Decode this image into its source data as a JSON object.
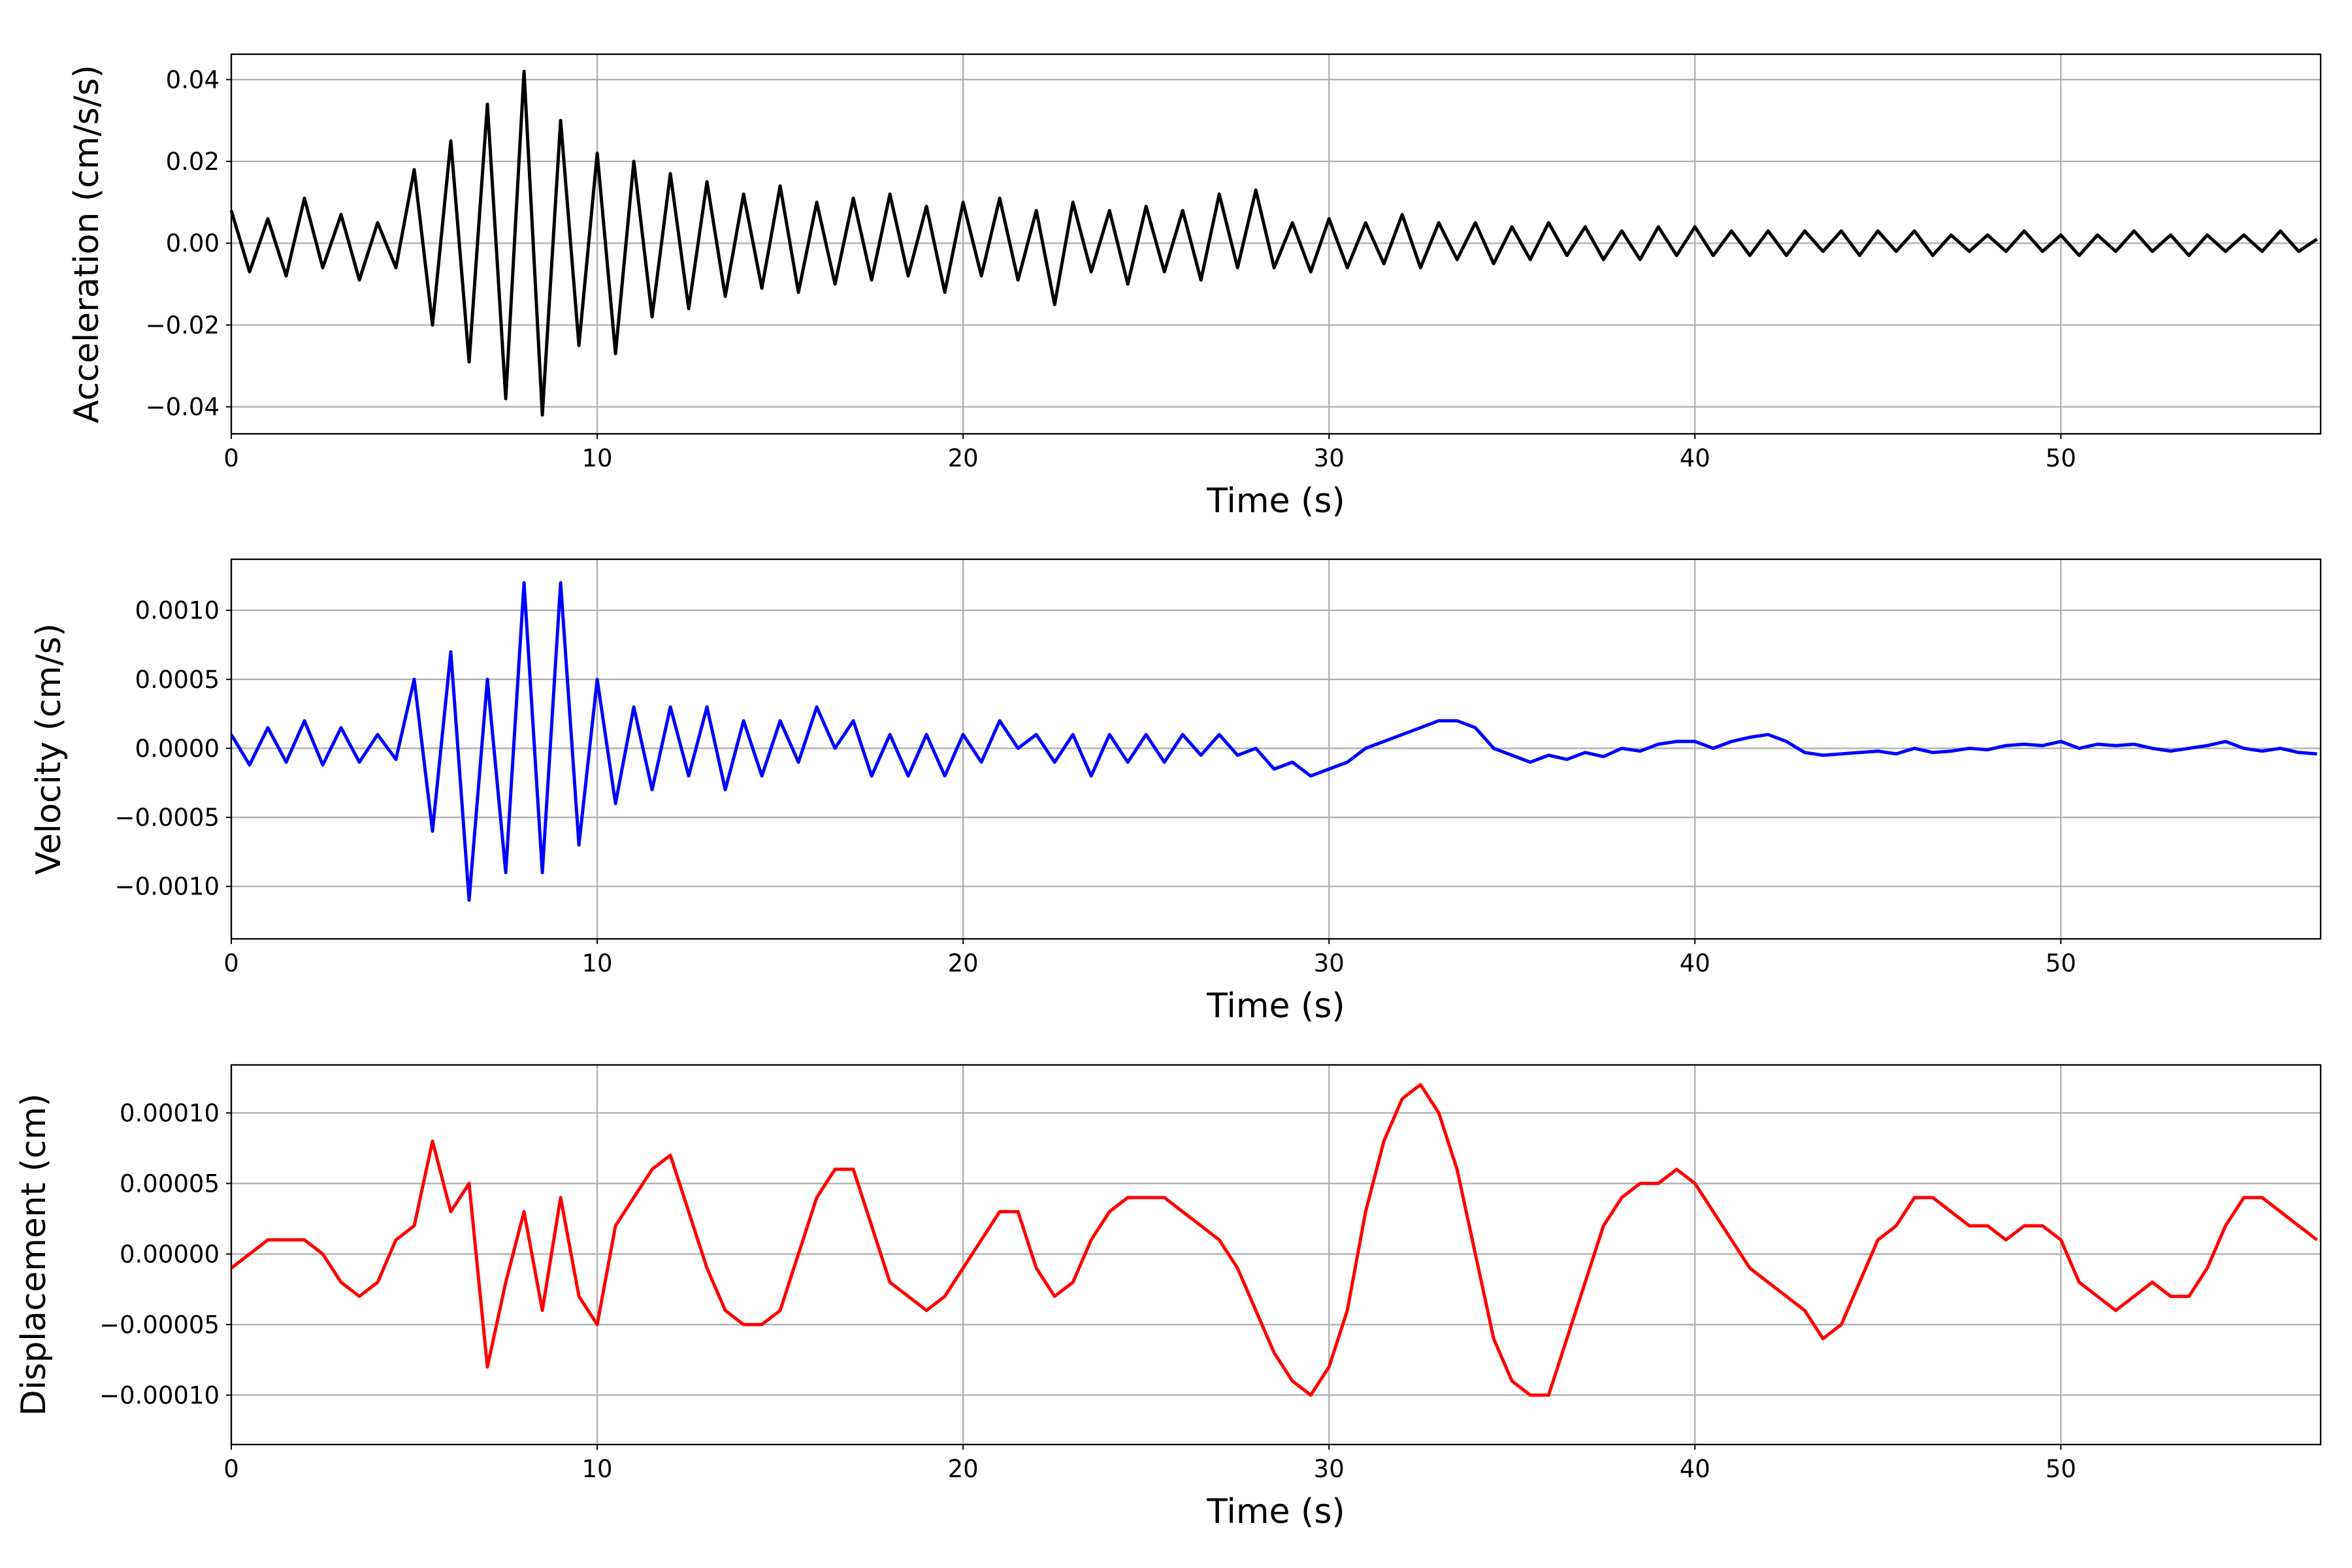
{
  "chart_data": [
    {
      "type": "line",
      "xlabel": "Time (s)",
      "ylabel": "Acceleration (cm/s/s)",
      "color": "#000000",
      "grid": true,
      "xlim": [
        0,
        57.1
      ],
      "xticks": [
        0,
        10,
        20,
        30,
        40,
        50
      ],
      "ylim": [
        -0.0466,
        0.0462
      ],
      "yticks": [
        {
          "value": -0.04,
          "label": "−0.04"
        },
        {
          "value": -0.02,
          "label": "−0.02"
        },
        {
          "value": 0,
          "label": "0.00"
        },
        0.02,
        0.04
      ],
      "x": [
        0,
        0.5,
        1,
        1.5,
        2,
        2.5,
        3,
        3.5,
        4,
        4.5,
        5,
        5.5,
        6,
        6.5,
        7,
        7.5,
        8,
        8.5,
        9,
        9.5,
        10,
        10.5,
        11,
        11.5,
        12,
        12.5,
        13,
        13.5,
        14,
        14.5,
        15,
        15.5,
        16,
        16.5,
        17,
        17.5,
        18,
        18.5,
        19,
        19.5,
        20,
        20.5,
        21,
        21.5,
        22,
        22.5,
        23,
        23.5,
        24,
        24.5,
        25,
        25.5,
        26,
        26.5,
        27,
        27.5,
        28,
        28.5,
        29,
        29.5,
        30,
        30.5,
        31,
        31.5,
        32,
        32.5,
        33,
        33.5,
        34,
        34.5,
        35,
        35.5,
        36,
        36.5,
        37,
        37.5,
        38,
        38.5,
        39,
        39.5,
        40,
        40.5,
        41,
        41.5,
        42,
        42.5,
        43,
        43.5,
        44,
        44.5,
        45,
        45.5,
        46,
        46.5,
        47,
        47.5,
        48,
        48.5,
        49,
        49.5,
        50,
        50.5,
        51,
        51.5,
        52,
        52.5,
        53,
        53.5,
        54,
        54.5,
        55,
        55.5,
        56,
        56.5,
        57
      ],
      "values": [
        0.008,
        -0.007,
        0.006,
        -0.008,
        0.011,
        -0.006,
        0.007,
        -0.009,
        0.005,
        -0.006,
        0.018,
        -0.02,
        0.025,
        -0.029,
        0.034,
        -0.038,
        0.042,
        -0.042,
        0.03,
        -0.025,
        0.022,
        -0.027,
        0.02,
        -0.018,
        0.017,
        -0.016,
        0.015,
        -0.013,
        0.012,
        -0.011,
        0.014,
        -0.012,
        0.01,
        -0.01,
        0.011,
        -0.009,
        0.012,
        -0.008,
        0.009,
        -0.012,
        0.01,
        -0.008,
        0.011,
        -0.009,
        0.008,
        -0.015,
        0.01,
        -0.007,
        0.008,
        -0.01,
        0.009,
        -0.007,
        0.008,
        -0.009,
        0.012,
        -0.006,
        0.013,
        -0.006,
        0.005,
        -0.007,
        0.006,
        -0.006,
        0.005,
        -0.005,
        0.007,
        -0.006,
        0.005,
        -0.004,
        0.005,
        -0.005,
        0.004,
        -0.004,
        0.005,
        -0.003,
        0.004,
        -0.004,
        0.003,
        -0.004,
        0.004,
        -0.003,
        0.004,
        -0.003,
        0.003,
        -0.003,
        0.003,
        -0.003,
        0.003,
        -0.002,
        0.003,
        -0.003,
        0.003,
        -0.002,
        0.003,
        -0.003,
        0.002,
        -0.002,
        0.002,
        -0.002,
        0.003,
        -0.002,
        0.002,
        -0.003,
        0.002,
        -0.002,
        0.003,
        -0.002,
        0.002,
        -0.003,
        0.002,
        -0.002,
        0.002,
        -0.002,
        0.003,
        -0.002,
        0.001
      ]
    },
    {
      "type": "line",
      "xlabel": "Time (s)",
      "ylabel": "Velocity (cm/s)",
      "color": "#0000ff",
      "grid": true,
      "xlim": [
        0,
        57.1
      ],
      "xticks": [
        0,
        10,
        20,
        30,
        40,
        50
      ],
      "ylim": [
        -0.00138,
        0.00137
      ],
      "yticks": [
        {
          "value": -0.001,
          "label": "−0.0010"
        },
        {
          "value": -0.0005,
          "label": "−0.0005"
        },
        {
          "value": 0,
          "label": "0.0000"
        },
        {
          "value": 0.0005,
          "label": "0.0005"
        },
        {
          "value": 0.001,
          "label": "0.0010"
        }
      ],
      "x": [
        0,
        0.5,
        1,
        1.5,
        2,
        2.5,
        3,
        3.5,
        4,
        4.5,
        5,
        5.5,
        6,
        6.5,
        7,
        7.5,
        8,
        8.5,
        9,
        9.5,
        10,
        10.5,
        11,
        11.5,
        12,
        12.5,
        13,
        13.5,
        14,
        14.5,
        15,
        15.5,
        16,
        16.5,
        17,
        17.5,
        18,
        18.5,
        19,
        19.5,
        20,
        20.5,
        21,
        21.5,
        22,
        22.5,
        23,
        23.5,
        24,
        24.5,
        25,
        25.5,
        26,
        26.5,
        27,
        27.5,
        28,
        28.5,
        29,
        29.5,
        30,
        30.5,
        31,
        31.5,
        32,
        32.5,
        33,
        33.5,
        34,
        34.5,
        35,
        35.5,
        36,
        36.5,
        37,
        37.5,
        38,
        38.5,
        39,
        39.5,
        40,
        40.5,
        41,
        41.5,
        42,
        42.5,
        43,
        43.5,
        44,
        44.5,
        45,
        45.5,
        46,
        46.5,
        47,
        47.5,
        48,
        48.5,
        49,
        49.5,
        50,
        50.5,
        51,
        51.5,
        52,
        52.5,
        53,
        53.5,
        54,
        54.5,
        55,
        55.5,
        56,
        56.5,
        57
      ],
      "values": [
        0.0001,
        -0.00012,
        0.00015,
        -0.0001,
        0.0002,
        -0.00012,
        0.00015,
        -0.0001,
        0.0001,
        -8e-05,
        0.0005,
        -0.0006,
        0.0007,
        -0.0011,
        0.0005,
        -0.0009,
        0.0012,
        -0.0009,
        0.0012,
        -0.0007,
        0.0005,
        -0.0004,
        0.0003,
        -0.0003,
        0.0003,
        -0.0002,
        0.0003,
        -0.0003,
        0.0002,
        -0.0002,
        0.0002,
        -0.0001,
        0.0003,
        0.0,
        0.0002,
        -0.0002,
        0.0001,
        -0.0002,
        0.0001,
        -0.0002,
        0.0001,
        -0.0001,
        0.0002,
        0.0,
        0.0001,
        -0.0001,
        0.0001,
        -0.0002,
        0.0001,
        -0.0001,
        0.0001,
        -0.0001,
        0.0001,
        -5e-05,
        0.0001,
        -5e-05,
        0.0,
        -0.00015,
        -0.0001,
        -0.0002,
        -0.00015,
        -0.0001,
        0.0,
        5e-05,
        0.0001,
        0.00015,
        0.0002,
        0.0002,
        0.00015,
        0.0,
        -5e-05,
        -0.0001,
        -5e-05,
        -8e-05,
        -3e-05,
        -6e-05,
        0.0,
        -2e-05,
        3e-05,
        5e-05,
        5e-05,
        0.0,
        5e-05,
        8e-05,
        0.0001,
        5e-05,
        -3e-05,
        -5e-05,
        -4e-05,
        -3e-05,
        -2e-05,
        -4e-05,
        0.0,
        -3e-05,
        -2e-05,
        0.0,
        -1e-05,
        2e-05,
        3e-05,
        2e-05,
        5e-05,
        0.0,
        3e-05,
        2e-05,
        3e-05,
        0.0,
        -2e-05,
        0.0,
        2e-05,
        5e-05,
        0.0,
        -2e-05,
        0.0,
        -3e-05,
        -4e-05
      ]
    },
    {
      "type": "line",
      "xlabel": "Time (s)",
      "ylabel": "Displacement (cm)",
      "color": "#ff0000",
      "grid": true,
      "xlim": [
        0,
        57.1
      ],
      "xticks": [
        0,
        10,
        20,
        30,
        40,
        50
      ],
      "ylim": [
        -0.000135,
        0.000134
      ],
      "yticks": [
        {
          "value": -0.0001,
          "label": "−0.00010"
        },
        {
          "value": -5e-05,
          "label": "−0.00005"
        },
        {
          "value": 0,
          "label": "0.00000"
        },
        {
          "value": 5e-05,
          "label": "0.00005"
        },
        {
          "value": 0.0001,
          "label": "0.00010"
        }
      ],
      "x": [
        0,
        0.5,
        1,
        1.5,
        2,
        2.5,
        3,
        3.5,
        4,
        4.5,
        5,
        5.5,
        6,
        6.5,
        7,
        7.5,
        8,
        8.5,
        9,
        9.5,
        10,
        10.5,
        11,
        11.5,
        12,
        12.5,
        13,
        13.5,
        14,
        14.5,
        15,
        15.5,
        16,
        16.5,
        17,
        17.5,
        18,
        18.5,
        19,
        19.5,
        20,
        20.5,
        21,
        21.5,
        22,
        22.5,
        23,
        23.5,
        24,
        24.5,
        25,
        25.5,
        26,
        26.5,
        27,
        27.5,
        28,
        28.5,
        29,
        29.5,
        30,
        30.5,
        31,
        31.5,
        32,
        32.5,
        33,
        33.5,
        34,
        34.5,
        35,
        35.5,
        36,
        36.5,
        37,
        37.5,
        38,
        38.5,
        39,
        39.5,
        40,
        40.5,
        41,
        41.5,
        42,
        42.5,
        43,
        43.5,
        44,
        44.5,
        45,
        45.5,
        46,
        46.5,
        47,
        47.5,
        48,
        48.5,
        49,
        49.5,
        50,
        50.5,
        51,
        51.5,
        52,
        52.5,
        53,
        53.5,
        54,
        54.5,
        55,
        55.5,
        56,
        56.5,
        57
      ],
      "values": [
        -1e-05,
        0.0,
        1e-05,
        1e-05,
        1e-05,
        0.0,
        -2e-05,
        -3e-05,
        -2e-05,
        1e-05,
        2e-05,
        8e-05,
        3e-05,
        5e-05,
        -8e-05,
        -2e-05,
        3e-05,
        -4e-05,
        4e-05,
        -3e-05,
        -5e-05,
        2e-05,
        4e-05,
        6e-05,
        7e-05,
        3e-05,
        -1e-05,
        -4e-05,
        -5e-05,
        -5e-05,
        -4e-05,
        0.0,
        4e-05,
        6e-05,
        6e-05,
        2e-05,
        -2e-05,
        -3e-05,
        -4e-05,
        -3e-05,
        -1e-05,
        1e-05,
        3e-05,
        3e-05,
        -1e-05,
        -3e-05,
        -2e-05,
        1e-05,
        3e-05,
        4e-05,
        4e-05,
        4e-05,
        3e-05,
        2e-05,
        1e-05,
        -1e-05,
        -4e-05,
        -7e-05,
        -9e-05,
        -0.0001,
        -8e-05,
        -4e-05,
        3e-05,
        8e-05,
        0.00011,
        0.00012,
        0.0001,
        6e-05,
        0.0,
        -6e-05,
        -9e-05,
        -0.0001,
        -0.0001,
        -6e-05,
        -2e-05,
        2e-05,
        4e-05,
        5e-05,
        5e-05,
        6e-05,
        5e-05,
        3e-05,
        1e-05,
        -1e-05,
        -2e-05,
        -3e-05,
        -4e-05,
        -6e-05,
        -5e-05,
        -2e-05,
        1e-05,
        2e-05,
        4e-05,
        4e-05,
        3e-05,
        2e-05,
        2e-05,
        1e-05,
        2e-05,
        2e-05,
        1e-05,
        -2e-05,
        -3e-05,
        -4e-05,
        -3e-05,
        -2e-05,
        -3e-05,
        -3e-05,
        -1e-05,
        2e-05,
        4e-05,
        4e-05,
        3e-05,
        2e-05,
        1e-05
      ]
    }
  ]
}
